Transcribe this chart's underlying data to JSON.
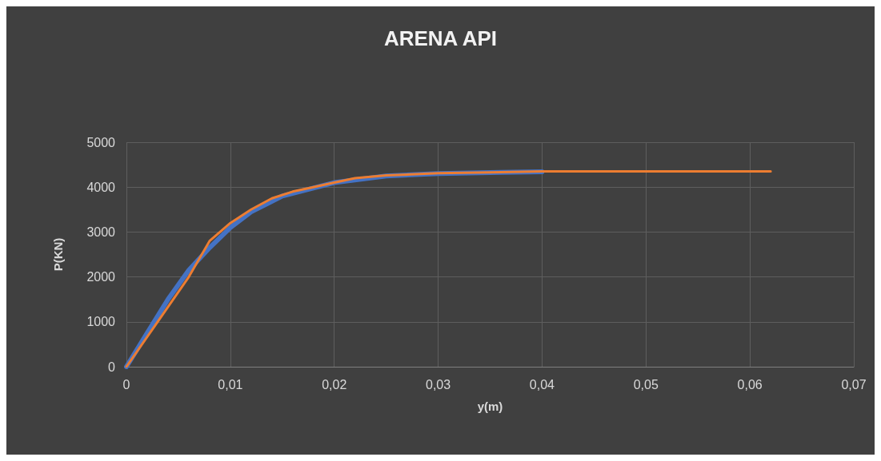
{
  "chart_data": {
    "type": "line",
    "title": "ARENA API",
    "xlabel": "y(m)",
    "ylabel": "P(KN)",
    "xlim": [
      0,
      0.07
    ],
    "xticks": [
      {
        "value": 0,
        "label": "0"
      },
      {
        "value": 0.01,
        "label": "0,01"
      },
      {
        "value": 0.02,
        "label": "0,02"
      },
      {
        "value": 0.03,
        "label": "0,03"
      },
      {
        "value": 0.04,
        "label": "0,04"
      },
      {
        "value": 0.05,
        "label": "0,05"
      },
      {
        "value": 0.06,
        "label": "0,06"
      },
      {
        "value": 0.07,
        "label": "0,07"
      }
    ],
    "ylim": [
      0,
      5000
    ],
    "yticks": [
      0,
      1000,
      2000,
      3000,
      4000,
      5000
    ],
    "grid": true,
    "marker": "none",
    "line_style": "solid",
    "series": [
      {
        "color": "#4472c4",
        "x": [
          0,
          0.002,
          0.004,
          0.006,
          0.008,
          0.01,
          0.012,
          0.015,
          0.02,
          0.025,
          0.03,
          0.036,
          0.04
        ],
        "values": [
          0,
          750,
          1500,
          2150,
          2650,
          3100,
          3450,
          3800,
          4100,
          4250,
          4300,
          4330,
          4340
        ]
      },
      {
        "color": "#ed7d31",
        "x": [
          0,
          0.003,
          0.006,
          0.0075,
          0.008,
          0.01,
          0.012,
          0.014,
          0.016,
          0.018,
          0.02,
          0.022,
          0.025,
          0.03,
          0.035,
          0.04,
          0.05,
          0.062
        ],
        "values": [
          0,
          1000,
          2000,
          2600,
          2800,
          3200,
          3500,
          3750,
          3900,
          4000,
          4100,
          4200,
          4260,
          4310,
          4330,
          4350,
          4350,
          4350
        ]
      }
    ]
  }
}
